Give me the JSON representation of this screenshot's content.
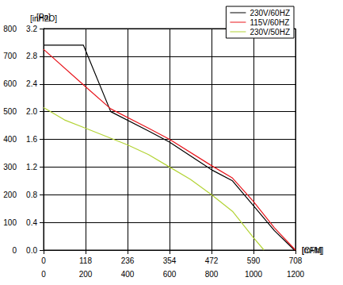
{
  "chart_data": {
    "type": "line",
    "xlabel": "[m³/h]",
    "x2label": "[CFM]",
    "ylabel": "[Pa]",
    "y2label": "[inH2O]",
    "xlim": [
      0,
      1200
    ],
    "xticks": [
      0,
      200,
      400,
      600,
      800,
      1000,
      1200
    ],
    "x2lim": [
      0,
      708
    ],
    "x2ticks": [
      0,
      118,
      236,
      354,
      472,
      590,
      708
    ],
    "ylim": [
      0,
      800
    ],
    "yticks": [
      0,
      100,
      200,
      300,
      400,
      500,
      600,
      700,
      800
    ],
    "y2lim": [
      0,
      3.2
    ],
    "y2ticks": [
      {
        "value": 0,
        "label": "0.0"
      },
      0.4,
      0.8,
      1.2,
      1.6,
      {
        "value": 2,
        "label": "2.0"
      },
      2.4,
      2.8,
      3.2
    ],
    "grid": true,
    "legend": "upper right",
    "series": [
      {
        "name": "230V/60HZ",
        "color": "#000000",
        "x": [
          0,
          190,
          320,
          500,
          600,
          800,
          900,
          1000,
          1100,
          1195
        ],
        "values": [
          740,
          740,
          500,
          430,
          390,
          290,
          250,
          160,
          70,
          0
        ]
      },
      {
        "name": "115V/60HZ",
        "color": "#e8141b",
        "x": [
          0,
          200,
          320,
          500,
          600,
          800,
          900,
          1000,
          1100,
          1200
        ],
        "values": [
          725,
          590,
          510,
          440,
          400,
          305,
          260,
          175,
          80,
          0
        ]
      },
      {
        "name": "230V/50HZ",
        "color": "#b3d335",
        "x": [
          0,
          100,
          200,
          400,
          500,
          600,
          700,
          800,
          900,
          1000,
          1050
        ],
        "values": [
          515,
          470,
          440,
          380,
          345,
          300,
          255,
          200,
          140,
          45,
          0
        ]
      }
    ]
  }
}
